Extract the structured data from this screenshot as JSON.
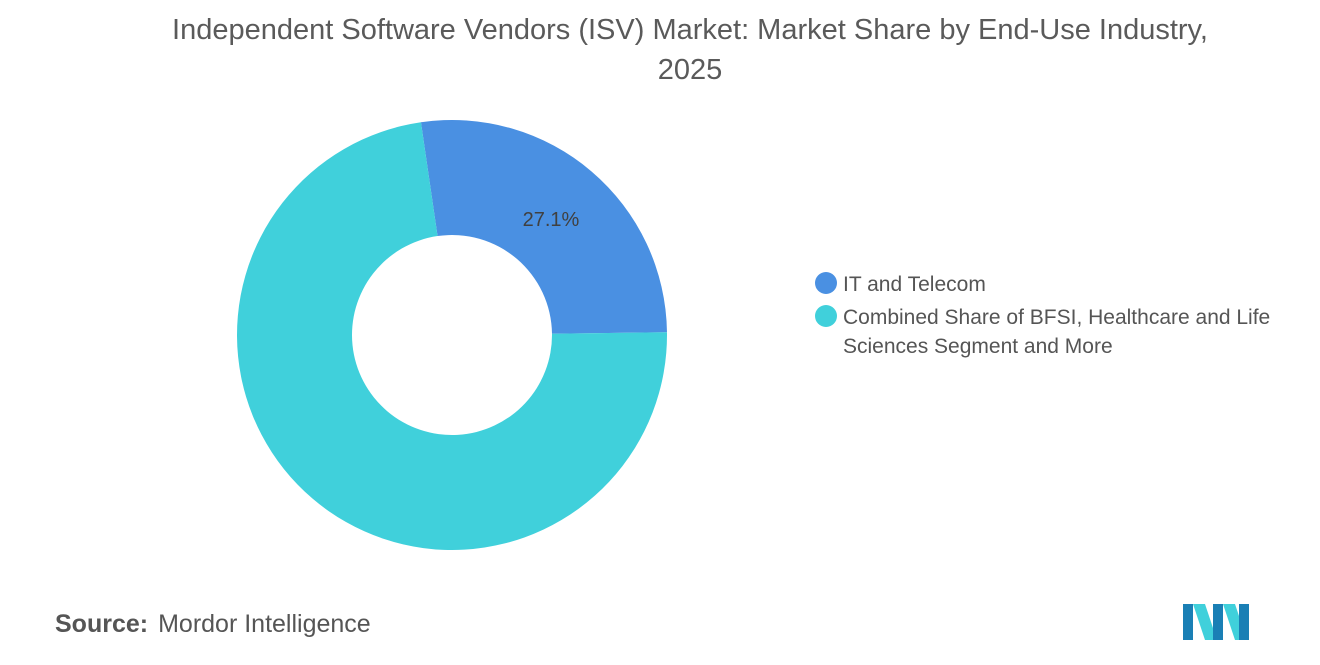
{
  "chart_data": {
    "type": "pie",
    "subtype": "donut",
    "title": "Independent Software Vendors (ISV) Market: Market Share by End-Use Industry, 2025",
    "segments": [
      {
        "name": "IT and Telecom",
        "value": 27.1,
        "label": "27.1%",
        "color": "#4A90E2"
      },
      {
        "name": "Combined Share of BFSI, Healthcare and Life Sciences Segment and More",
        "value": 72.9,
        "label": "",
        "color": "#40D0DB"
      }
    ],
    "legend_position": "right"
  },
  "source": {
    "label": "Source:",
    "text": "Mordor Intelligence"
  },
  "logo": {
    "icon": "mordor-intelligence-logo",
    "colors": [
      "#1a7fb5",
      "#40D0DB"
    ]
  }
}
